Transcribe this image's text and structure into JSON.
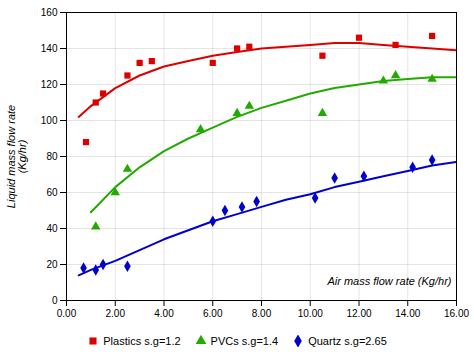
{
  "chart_data": {
    "type": "scatter",
    "ylabel": "Liquid mass flow rate\n(Kg/hr)",
    "annotations": [
      {
        "text": "Air mass flow rate (Kg/hr)"
      }
    ],
    "xlim": [
      0,
      16
    ],
    "ylim": [
      0,
      160
    ],
    "xticks": [
      {
        "value": 0,
        "label": "0.00"
      },
      {
        "value": 2,
        "label": "2.00"
      },
      {
        "value": 4,
        "label": "4.00"
      },
      {
        "value": 6,
        "label": "6.00"
      },
      {
        "value": 8,
        "label": "8.00"
      },
      {
        "value": 10,
        "label": "10.00"
      },
      {
        "value": 12,
        "label": "12.00"
      },
      {
        "value": 14,
        "label": "14.00"
      },
      {
        "value": 16,
        "label": "16.00"
      }
    ],
    "yticks": [
      0,
      20,
      40,
      60,
      80,
      100,
      120,
      140,
      160
    ],
    "grid": true,
    "legend": "bottom",
    "series": [
      {
        "name": "Plastics s.g=1.2",
        "color": "#dd0000",
        "marker": "square",
        "x": [
          0.8,
          1.2,
          1.5,
          2.5,
          3.0,
          3.5,
          6.0,
          7.0,
          7.5,
          10.5,
          12.0,
          13.5,
          15.0
        ],
        "values": [
          88,
          110,
          115,
          125,
          132,
          133,
          132,
          140,
          141,
          136,
          146,
          142,
          147
        ],
        "curve": {
          "x": [
            0.5,
            1.0,
            2.0,
            3.0,
            4.0,
            5.0,
            6.0,
            7.0,
            8.0,
            9.0,
            10.0,
            11.0,
            12.0,
            13.0,
            14.0,
            15.0,
            16.0
          ],
          "values": [
            102,
            108,
            118,
            125,
            130,
            133,
            136,
            138,
            140,
            141,
            142,
            143,
            143,
            142,
            141,
            140,
            139
          ]
        }
      },
      {
        "name": "PVCs s.g=1.4",
        "color": "#22aa00",
        "marker": "triangle",
        "x": [
          1.2,
          2.0,
          2.5,
          5.5,
          7.0,
          7.5,
          10.5,
          13.0,
          13.5,
          15.0
        ],
        "values": [
          41,
          60,
          73,
          95,
          104,
          108,
          104,
          122,
          125,
          123
        ],
        "curve": {
          "x": [
            1.0,
            2.0,
            3.0,
            4.0,
            5.0,
            6.0,
            7.0,
            8.0,
            9.0,
            10.0,
            11.0,
            12.0,
            13.0,
            14.0,
            15.0,
            16.0
          ],
          "values": [
            49,
            63,
            74,
            83,
            90,
            96,
            102,
            107,
            111,
            115,
            118,
            120,
            122,
            123,
            124,
            124
          ]
        }
      },
      {
        "name": "Quartz s.g=2.65",
        "color": "#0000cc",
        "marker": "diamond",
        "x": [
          0.7,
          1.2,
          1.5,
          2.5,
          6.0,
          6.5,
          7.2,
          7.8,
          10.2,
          11.0,
          12.2,
          14.2,
          15.0
        ],
        "values": [
          18,
          17,
          20,
          19,
          44,
          50,
          52,
          55,
          57,
          68,
          69,
          74,
          78
        ],
        "curve": {
          "x": [
            0.5,
            1.0,
            2.0,
            3.0,
            4.0,
            5.0,
            6.0,
            7.0,
            8.0,
            9.0,
            10.0,
            11.0,
            12.0,
            13.0,
            14.0,
            15.0,
            16.0
          ],
          "values": [
            14,
            17,
            22,
            28,
            34,
            39,
            44,
            48,
            52,
            56,
            59,
            63,
            66,
            69,
            72,
            75,
            77
          ]
        }
      }
    ]
  }
}
